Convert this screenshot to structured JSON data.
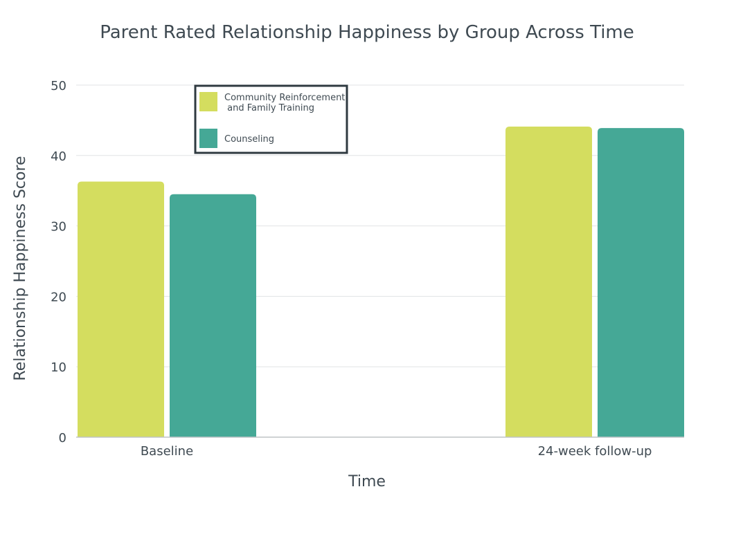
{
  "chart_data": {
    "type": "bar",
    "title": "Parent Rated Relationship Happiness by Group Across Time",
    "xlabel": "Time",
    "ylabel": "Relationship Happiness Score",
    "categories": [
      "Baseline",
      "24-week follow-up"
    ],
    "series": [
      {
        "name_lines": [
          "Community Reinforcement",
          " and Family Training"
        ],
        "color": "#d4dd5f",
        "values": [
          36.3,
          44.1
        ]
      },
      {
        "name_lines": [
          "Counseling"
        ],
        "color": "#45a896",
        "values": [
          34.5,
          43.9
        ]
      }
    ],
    "ylim": [
      0,
      50
    ],
    "yticks": [
      0,
      10,
      20,
      30,
      40,
      50
    ],
    "grid": true,
    "legend_position": "top-left"
  }
}
